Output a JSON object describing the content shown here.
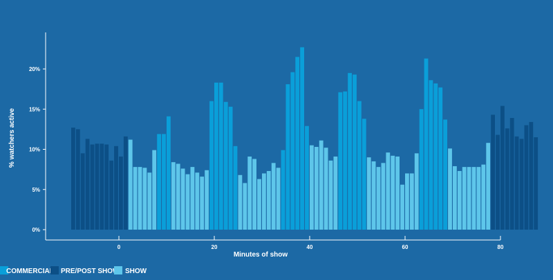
{
  "chart_data": {
    "type": "bar",
    "title": "",
    "xlabel": "Minutes of show",
    "ylabel": "% watchers active",
    "xlim": [
      -10,
      80
    ],
    "ylim": [
      0,
      24
    ],
    "x_ticks": [
      {
        "value": 0,
        "label": "0"
      },
      {
        "value": 20,
        "label": "20"
      },
      {
        "value": 40,
        "label": "40"
      },
      {
        "value": 60,
        "label": "60"
      },
      {
        "value": 80,
        "label": "80"
      }
    ],
    "y_ticks": [
      {
        "value": 0,
        "label": "0%"
      },
      {
        "value": 5,
        "label": "5%"
      },
      {
        "value": 10,
        "label": "10%"
      },
      {
        "value": 15,
        "label": "15%"
      },
      {
        "value": 20,
        "label": "20%"
      }
    ],
    "grid": false,
    "legend_position": "bottom-left",
    "categories_legend": [
      {
        "key": "commercial",
        "label": "COMMERCIAL",
        "color": "#0a9fd9"
      },
      {
        "key": "prepost",
        "label": "PRE/POST SHOW",
        "color": "#0c4f86"
      },
      {
        "key": "show",
        "label": "SHOW",
        "color": "#5ec6ea"
      }
    ],
    "bar_start_minute": -10,
    "bar_width_minutes": 1,
    "values": [
      12.7,
      12.5,
      9.5,
      11.3,
      10.6,
      10.7,
      10.7,
      10.6,
      8.6,
      10.4,
      9.1,
      11.6,
      11.2,
      7.8,
      7.8,
      7.7,
      7.1,
      9.9,
      11.9,
      11.9,
      14.1,
      8.4,
      8.2,
      7.6,
      6.9,
      7.8,
      7.1,
      6.6,
      7.4,
      16.0,
      18.3,
      18.3,
      15.9,
      15.3,
      10.4,
      6.8,
      5.8,
      9.1,
      8.8,
      6.3,
      7.0,
      7.3,
      8.3,
      7.7,
      9.9,
      18.1,
      19.6,
      21.5,
      22.7,
      12.9,
      10.5,
      10.3,
      11.1,
      10.2,
      8.6,
      9.1,
      17.1,
      17.2,
      19.5,
      19.3,
      16.0,
      13.8,
      9.0,
      8.5,
      7.8,
      8.3,
      9.6,
      9.2,
      9.1,
      5.6,
      7.0,
      7.0,
      9.5,
      15.0,
      21.3,
      18.6,
      18.2,
      17.7,
      13.7,
      10.1,
      7.9,
      7.3,
      7.8,
      7.8,
      7.8,
      7.8,
      8.1,
      10.8,
      14.3,
      11.8,
      15.4,
      12.6,
      13.9,
      11.6,
      11.3,
      13.0,
      13.4,
      11.5
    ],
    "segments": [
      {
        "category": "prepost",
        "count": 12
      },
      {
        "category": "show",
        "count": 6
      },
      {
        "category": "commercial",
        "count": 3
      },
      {
        "category": "show",
        "count": 8
      },
      {
        "category": "commercial",
        "count": 6
      },
      {
        "category": "show",
        "count": 9
      },
      {
        "category": "commercial",
        "count": 6
      },
      {
        "category": "show",
        "count": 6
      },
      {
        "category": "commercial",
        "count": 6
      },
      {
        "category": "show",
        "count": 11
      },
      {
        "category": "commercial",
        "count": 6
      },
      {
        "category": "show",
        "count": 9
      },
      {
        "category": "prepost",
        "count": 10
      }
    ]
  }
}
